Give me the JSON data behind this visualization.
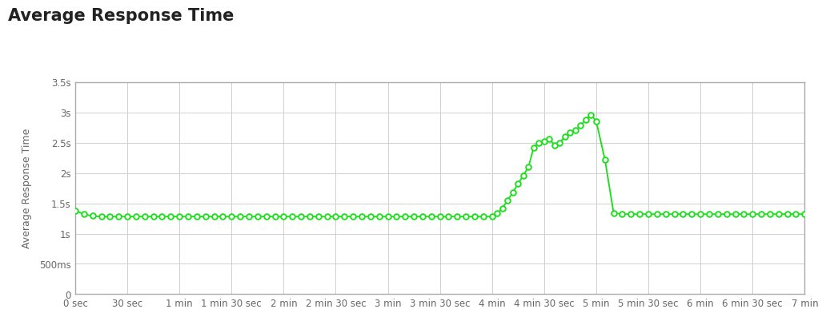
{
  "title": "Average Response Time",
  "ylabel": "Average Response Time",
  "background_color": "#ffffff",
  "plot_bg_color": "#ffffff",
  "grid_color": "#d0d0d0",
  "line_color": "#22dd22",
  "marker_color": "#22dd22",
  "title_fontsize": 15,
  "axis_label_fontsize": 9,
  "tick_fontsize": 8.5,
  "xlim": [
    0,
    420
  ],
  "ylim": [
    0,
    3.5
  ],
  "yticks": [
    0,
    0.5,
    1.0,
    1.5,
    2.0,
    2.5,
    3.0,
    3.5
  ],
  "ytick_labels": [
    "0",
    "500ms",
    "1s",
    "1.5s",
    "2s",
    "2.5s",
    "3s",
    "3.5s"
  ],
  "xticks": [
    0,
    30,
    60,
    90,
    120,
    150,
    180,
    210,
    240,
    270,
    300,
    330,
    360,
    390,
    420
  ],
  "xtick_labels": [
    "0 sec",
    "30 sec",
    "1 min",
    "1 min 30 sec",
    "2 min",
    "2 min 30 sec",
    "3 min",
    "3 min 30 sec",
    "4 min",
    "4 min 30 sec",
    "5 min",
    "5 min 30 sec",
    "6 min",
    "6 min 30 sec",
    "7 min"
  ],
  "x_values": [
    0,
    5,
    10,
    15,
    20,
    25,
    30,
    35,
    40,
    45,
    50,
    55,
    60,
    65,
    70,
    75,
    80,
    85,
    90,
    95,
    100,
    105,
    110,
    115,
    120,
    125,
    130,
    135,
    140,
    145,
    150,
    155,
    160,
    165,
    170,
    175,
    180,
    185,
    190,
    195,
    200,
    205,
    210,
    215,
    220,
    225,
    230,
    235,
    240,
    243,
    246,
    249,
    252,
    255,
    258,
    261,
    264,
    267,
    270,
    273,
    276,
    279,
    282,
    285,
    288,
    291,
    294,
    297,
    300,
    305,
    310,
    315,
    320,
    325,
    330,
    335,
    340,
    345,
    350,
    355,
    360,
    365,
    370,
    375,
    380,
    385,
    390,
    395,
    400,
    405,
    410,
    415,
    420
  ],
  "y_values": [
    1.38,
    1.32,
    1.29,
    1.28,
    1.28,
    1.28,
    1.28,
    1.28,
    1.28,
    1.28,
    1.28,
    1.28,
    1.28,
    1.28,
    1.28,
    1.28,
    1.28,
    1.28,
    1.28,
    1.28,
    1.28,
    1.28,
    1.28,
    1.28,
    1.28,
    1.28,
    1.28,
    1.28,
    1.28,
    1.28,
    1.28,
    1.28,
    1.28,
    1.28,
    1.28,
    1.28,
    1.28,
    1.28,
    1.28,
    1.28,
    1.28,
    1.28,
    1.28,
    1.28,
    1.28,
    1.28,
    1.28,
    1.28,
    1.28,
    1.33,
    1.42,
    1.55,
    1.68,
    1.82,
    1.96,
    2.1,
    2.42,
    2.5,
    2.52,
    2.56,
    2.46,
    2.5,
    2.6,
    2.66,
    2.7,
    2.78,
    2.88,
    2.96,
    2.85,
    2.22,
    1.34,
    1.32,
    1.32,
    1.32,
    1.32,
    1.32,
    1.32,
    1.32,
    1.32,
    1.32,
    1.32,
    1.32,
    1.32,
    1.32,
    1.32,
    1.32,
    1.32,
    1.32,
    1.32,
    1.32,
    1.32,
    1.32,
    1.32
  ]
}
